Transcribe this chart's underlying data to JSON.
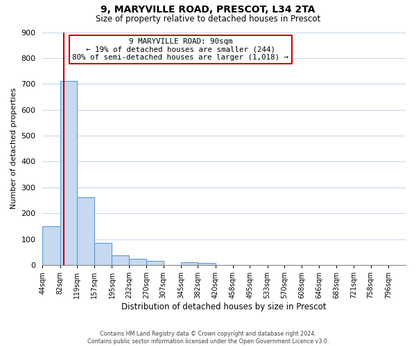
{
  "title": "9, MARYVILLE ROAD, PRESCOT, L34 2TA",
  "subtitle": "Size of property relative to detached houses in Prescot",
  "xlabel": "Distribution of detached houses by size in Prescot",
  "ylabel": "Number of detached properties",
  "bar_edges": [
    44,
    82,
    119,
    157,
    195,
    232,
    270,
    307,
    345,
    382,
    420,
    458,
    495,
    533,
    570,
    608,
    646,
    683,
    721,
    758,
    796
  ],
  "bar_heights": [
    150,
    712,
    263,
    85,
    38,
    24,
    15,
    0,
    10,
    8,
    0,
    0,
    0,
    0,
    0,
    0,
    0,
    0,
    0,
    0
  ],
  "property_size": 90,
  "bar_color": "#c6d9f0",
  "bar_edge_color": "#5b9bd5",
  "redline_color": "#cc0000",
  "annotation_text_line1": "9 MARYVILLE ROAD: 90sqm",
  "annotation_text_line2": "← 19% of detached houses are smaller (244)",
  "annotation_text_line3": "80% of semi-detached houses are larger (1,018) →",
  "annotation_box_facecolor": "#ffffff",
  "annotation_box_edgecolor": "#cc0000",
  "ylim": [
    0,
    900
  ],
  "yticks": [
    0,
    100,
    200,
    300,
    400,
    500,
    600,
    700,
    800,
    900
  ],
  "tick_labels": [
    "44sqm",
    "82sqm",
    "119sqm",
    "157sqm",
    "195sqm",
    "232sqm",
    "270sqm",
    "307sqm",
    "345sqm",
    "382sqm",
    "420sqm",
    "458sqm",
    "495sqm",
    "533sqm",
    "570sqm",
    "608sqm",
    "646sqm",
    "683sqm",
    "721sqm",
    "758sqm",
    "796sqm"
  ],
  "footer_line1": "Contains HM Land Registry data © Crown copyright and database right 2024.",
  "footer_line2": "Contains public sector information licensed under the Open Government Licence v3.0.",
  "grid_color": "#c8d8e8",
  "background_color": "#ffffff",
  "title_fontsize": 10,
  "subtitle_fontsize": 8.5,
  "ylabel_fontsize": 8,
  "xlabel_fontsize": 8.5,
  "ytick_fontsize": 8,
  "xtick_fontsize": 7
}
